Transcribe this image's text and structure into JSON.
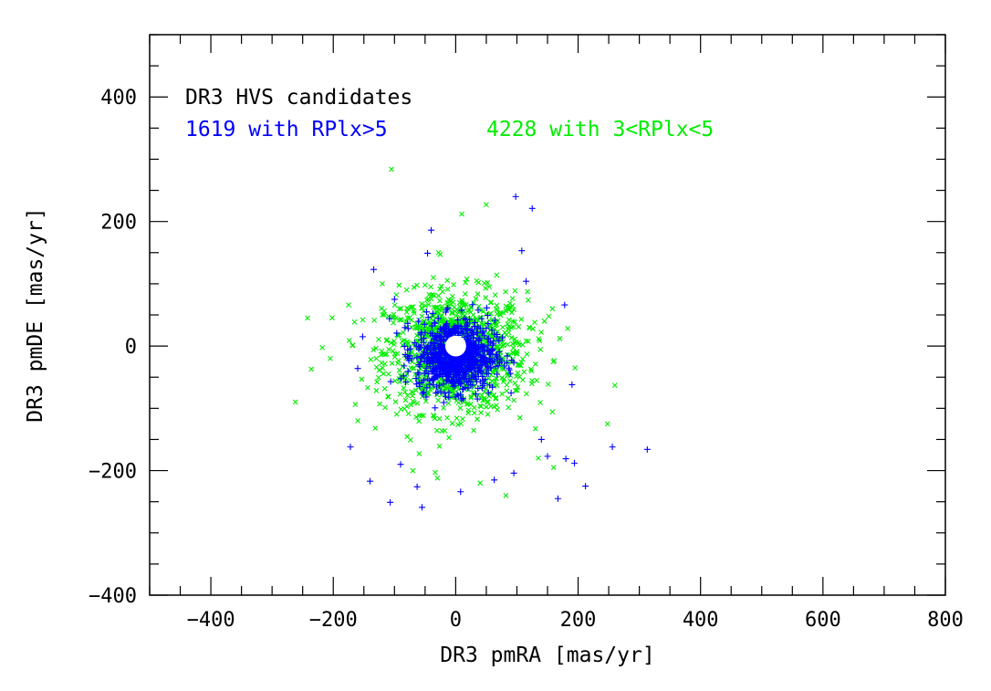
{
  "chart_data": {
    "type": "scatter",
    "xlabel": "DR3 pmRA [mas/yr]",
    "ylabel": "DR3 pmDE [mas/yr]",
    "xlim": [
      -500,
      800
    ],
    "ylim": [
      -400,
      500
    ],
    "x_ticks": [
      -400,
      -200,
      0,
      200,
      400,
      600,
      800
    ],
    "x_tick_labels": [
      "−400",
      "−200",
      "0",
      "200",
      "400",
      "600",
      "800"
    ],
    "y_ticks": [
      -400,
      -200,
      0,
      200,
      400
    ],
    "y_tick_labels": [
      "−400",
      "−200",
      "0",
      "200",
      "400"
    ],
    "annotations": {
      "title": "DR3 HVS candidates",
      "series_a": "1619 with RPlx>5",
      "series_b": "4228 with 3<RPlx<5"
    },
    "grid": false,
    "legend": "top-left",
    "colors": {
      "series_a": "#0000ff",
      "series_b": "#00ee00",
      "axes": "#000000"
    },
    "series": [
      {
        "name": "1619 with RPlx>5",
        "marker": "plus",
        "color": "#0000ff",
        "sampled_outliers": [
          {
            "x": 98,
            "y": 240
          },
          {
            "x": 125,
            "y": 221
          },
          {
            "x": 108,
            "y": 153
          },
          {
            "x": -40,
            "y": 186
          },
          {
            "x": -134,
            "y": 123
          },
          {
            "x": -46,
            "y": 149
          },
          {
            "x": 115,
            "y": 104
          },
          {
            "x": 178,
            "y": 66
          },
          {
            "x": -100,
            "y": 75
          },
          {
            "x": 313,
            "y": -166
          },
          {
            "x": 256,
            "y": -162
          },
          {
            "x": 212,
            "y": -225
          },
          {
            "x": 167,
            "y": -245
          },
          {
            "x": 180,
            "y": -181
          },
          {
            "x": 194,
            "y": -188
          },
          {
            "x": 150,
            "y": -177
          },
          {
            "x": -55,
            "y": -259
          },
          {
            "x": -107,
            "y": -251
          },
          {
            "x": 8,
            "y": -234
          },
          {
            "x": -140,
            "y": -217
          },
          {
            "x": -172,
            "y": -162
          },
          {
            "x": 63,
            "y": -215
          },
          {
            "x": -152,
            "y": 15
          },
          {
            "x": -160,
            "y": -36
          },
          {
            "x": 190,
            "y": -62
          },
          {
            "x": 95,
            "y": -204
          },
          {
            "x": -63,
            "y": -226
          },
          {
            "x": 140,
            "y": -150
          },
          {
            "x": -90,
            "y": -190
          }
        ],
        "core": {
          "center": [
            0,
            -15
          ],
          "sigma": [
            32,
            28
          ],
          "n_points": 900
        }
      },
      {
        "name": "4228 with 3<RPlx<5",
        "marker": "cross",
        "color": "#00ee00",
        "sampled_outliers": [
          {
            "x": -105,
            "y": 284
          },
          {
            "x": 50,
            "y": 227
          },
          {
            "x": 10,
            "y": 212
          },
          {
            "x": -28,
            "y": 150
          },
          {
            "x": -242,
            "y": 45
          },
          {
            "x": -262,
            "y": -90
          },
          {
            "x": -236,
            "y": -37
          },
          {
            "x": -175,
            "y": 66
          },
          {
            "x": 260,
            "y": -63
          },
          {
            "x": 248,
            "y": -125
          },
          {
            "x": 195,
            "y": -35
          },
          {
            "x": 145,
            "y": 40
          },
          {
            "x": 158,
            "y": 60
          },
          {
            "x": 120,
            "y": 30
          },
          {
            "x": 82,
            "y": -240
          },
          {
            "x": 160,
            "y": -195
          },
          {
            "x": -70,
            "y": -200
          },
          {
            "x": -30,
            "y": -212
          },
          {
            "x": 40,
            "y": -220
          },
          {
            "x": 105,
            "y": -115
          },
          {
            "x": -120,
            "y": 100
          },
          {
            "x": 67,
            "y": 114
          },
          {
            "x": -205,
            "y": -20
          },
          {
            "x": 170,
            "y": 12
          },
          {
            "x": 135,
            "y": -180
          },
          {
            "x": -160,
            "y": -120
          }
        ],
        "core": {
          "center": [
            0,
            -10
          ],
          "sigma": [
            58,
            48
          ],
          "n_points": 1200
        }
      }
    ]
  }
}
